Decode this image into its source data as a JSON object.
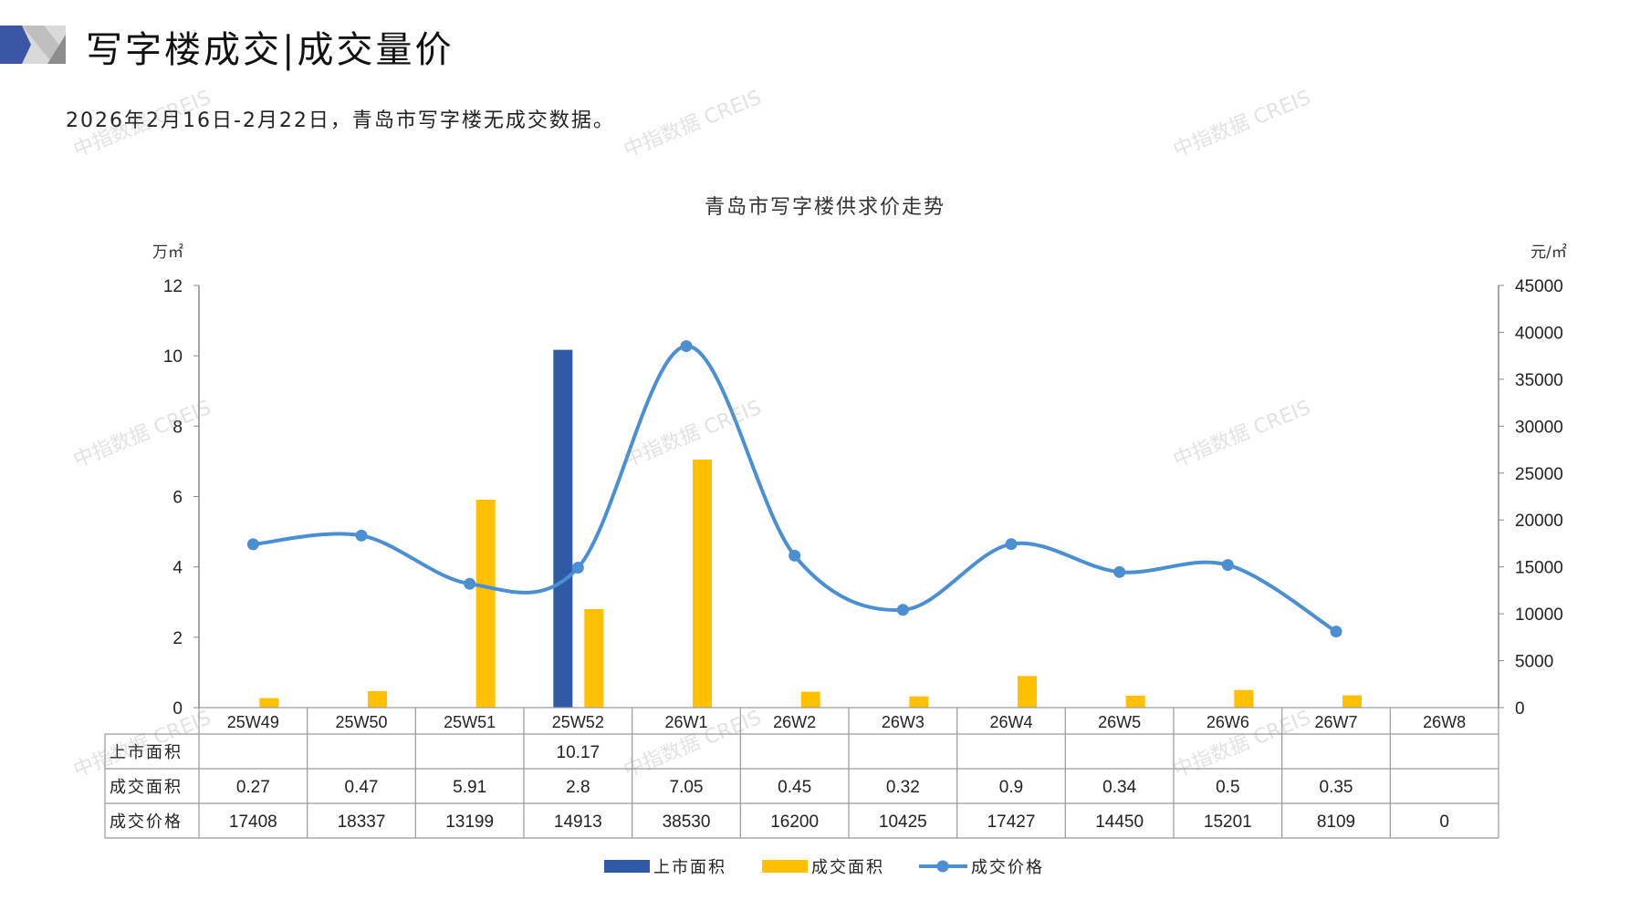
{
  "header": {
    "title": "写字楼成交|成交量价",
    "subtitle": "2026年2月16日-2月22日，青岛市写字楼无成交数据。"
  },
  "watermark": "中指数据 CREIS",
  "colors": {
    "supply": "#2E5AA8",
    "deal_area": "#FFC000",
    "price": "#4A8FD4",
    "logo_blue": "#3A56A5",
    "logo_gray": "#A9A9A9"
  },
  "chart_data": {
    "type": "bar+line",
    "title": "青岛市写字楼供求价走势",
    "y_left_label": "万㎡",
    "y_right_label": "元/㎡",
    "y_left_range": [
      0,
      12
    ],
    "y_left_ticks": [
      "0",
      "2",
      "4",
      "6",
      "8",
      "10",
      "12"
    ],
    "y_right_range": [
      0,
      45000
    ],
    "y_right_ticks": [
      "0",
      "5000",
      "10000",
      "15000",
      "20000",
      "25000",
      "30000",
      "35000",
      "40000",
      "45000"
    ],
    "categories": [
      "25W49",
      "25W50",
      "25W51",
      "25W52",
      "26W1",
      "26W2",
      "26W3",
      "26W4",
      "26W5",
      "26W6",
      "26W7",
      "26W8"
    ],
    "series": [
      {
        "name": "上市面积",
        "type": "bar",
        "axis": "left",
        "values": [
          null,
          null,
          null,
          10.17,
          null,
          null,
          null,
          null,
          null,
          null,
          null,
          null
        ],
        "labels": [
          "",
          "",
          "",
          "10.17",
          "",
          "",
          "",
          "",
          "",
          "",
          "",
          ""
        ]
      },
      {
        "name": "成交面积",
        "type": "bar",
        "axis": "left",
        "values": [
          0.27,
          0.47,
          5.91,
          2.8,
          7.05,
          0.45,
          0.32,
          0.9,
          0.34,
          0.5,
          0.35,
          null
        ],
        "labels": [
          "0.27",
          "0.47",
          "5.91",
          "2.8",
          "7.05",
          "0.45",
          "0.32",
          "0.9",
          "0.34",
          "0.5",
          "0.35",
          ""
        ]
      },
      {
        "name": "成交价格",
        "type": "line",
        "axis": "right",
        "values": [
          17408,
          18337,
          13199,
          14913,
          38530,
          16200,
          10425,
          17427,
          14450,
          15201,
          8109,
          0
        ],
        "labels": [
          "17408",
          "18337",
          "13199",
          "14913",
          "38530",
          "16200",
          "10425",
          "17427",
          "14450",
          "15201",
          "8109",
          "0"
        ]
      }
    ],
    "legend": "bottom",
    "grid": false,
    "data_table": true
  }
}
